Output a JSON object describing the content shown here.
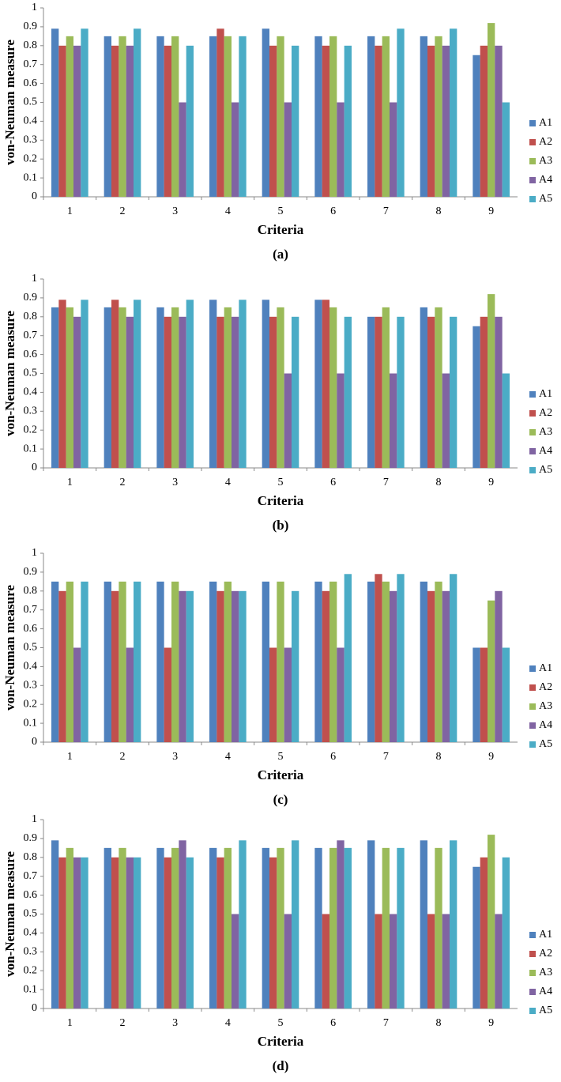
{
  "chart_data": [
    {
      "type": "bar",
      "caption": "(a)",
      "xlabel": "Criteria",
      "ylabel": "von-Neuman measure",
      "categories": [
        "1",
        "2",
        "3",
        "4",
        "5",
        "6",
        "7",
        "8",
        "9"
      ],
      "ylim": [
        0,
        1
      ],
      "yticks": [
        0,
        0.1,
        0.2,
        0.3,
        0.4,
        0.5,
        0.6,
        0.7,
        0.8,
        0.9,
        1
      ],
      "series": [
        {
          "name": "A1",
          "color": "#4f81bd",
          "values": [
            0.89,
            0.85,
            0.85,
            0.85,
            0.89,
            0.85,
            0.85,
            0.85,
            0.75
          ]
        },
        {
          "name": "A2",
          "color": "#c0504d",
          "values": [
            0.8,
            0.8,
            0.8,
            0.89,
            0.8,
            0.8,
            0.8,
            0.8,
            0.8
          ]
        },
        {
          "name": "A3",
          "color": "#9bbb59",
          "values": [
            0.85,
            0.85,
            0.85,
            0.85,
            0.85,
            0.85,
            0.85,
            0.85,
            0.92
          ]
        },
        {
          "name": "A4",
          "color": "#8064a2",
          "values": [
            0.8,
            0.8,
            0.5,
            0.5,
            0.5,
            0.5,
            0.5,
            0.8,
            0.8
          ]
        },
        {
          "name": "A5",
          "color": "#4bacc6",
          "values": [
            0.89,
            0.89,
            0.8,
            0.85,
            0.8,
            0.8,
            0.89,
            0.89,
            0.5
          ]
        }
      ]
    },
    {
      "type": "bar",
      "caption": "(b)",
      "xlabel": "Criteria",
      "ylabel": "von-Neuman measure",
      "categories": [
        "1",
        "2",
        "3",
        "4",
        "5",
        "6",
        "7",
        "8",
        "9"
      ],
      "ylim": [
        0,
        1
      ],
      "yticks": [
        0,
        0.1,
        0.2,
        0.3,
        0.4,
        0.5,
        0.6,
        0.7,
        0.8,
        0.9,
        1
      ],
      "series": [
        {
          "name": "A1",
          "color": "#4f81bd",
          "values": [
            0.85,
            0.85,
            0.85,
            0.89,
            0.89,
            0.89,
            0.8,
            0.85,
            0.75
          ]
        },
        {
          "name": "A2",
          "color": "#c0504d",
          "values": [
            0.89,
            0.89,
            0.8,
            0.8,
            0.8,
            0.89,
            0.8,
            0.8,
            0.8
          ]
        },
        {
          "name": "A3",
          "color": "#9bbb59",
          "values": [
            0.85,
            0.85,
            0.85,
            0.85,
            0.85,
            0.85,
            0.85,
            0.85,
            0.92
          ]
        },
        {
          "name": "A4",
          "color": "#8064a2",
          "values": [
            0.8,
            0.8,
            0.8,
            0.8,
            0.5,
            0.5,
            0.5,
            0.5,
            0.8
          ]
        },
        {
          "name": "A5",
          "color": "#4bacc6",
          "values": [
            0.89,
            0.89,
            0.89,
            0.89,
            0.8,
            0.8,
            0.8,
            0.8,
            0.5
          ]
        }
      ]
    },
    {
      "type": "bar",
      "caption": "(c)",
      "xlabel": "Criteria",
      "ylabel": "von-Neuman measure",
      "categories": [
        "1",
        "2",
        "3",
        "4",
        "5",
        "6",
        "7",
        "8",
        "9"
      ],
      "ylim": [
        0,
        1
      ],
      "yticks": [
        0,
        0.1,
        0.2,
        0.3,
        0.4,
        0.5,
        0.6,
        0.7,
        0.8,
        0.9,
        1
      ],
      "series": [
        {
          "name": "A1",
          "color": "#4f81bd",
          "values": [
            0.85,
            0.85,
            0.85,
            0.85,
            0.85,
            0.85,
            0.85,
            0.85,
            0.5
          ]
        },
        {
          "name": "A2",
          "color": "#c0504d",
          "values": [
            0.8,
            0.8,
            0.5,
            0.8,
            0.5,
            0.8,
            0.89,
            0.8,
            0.5
          ]
        },
        {
          "name": "A3",
          "color": "#9bbb59",
          "values": [
            0.85,
            0.85,
            0.85,
            0.85,
            0.85,
            0.85,
            0.85,
            0.85,
            0.75
          ]
        },
        {
          "name": "A4",
          "color": "#8064a2",
          "values": [
            0.5,
            0.5,
            0.8,
            0.8,
            0.5,
            0.5,
            0.8,
            0.8,
            0.8
          ]
        },
        {
          "name": "A5",
          "color": "#4bacc6",
          "values": [
            0.85,
            0.85,
            0.8,
            0.8,
            0.8,
            0.89,
            0.89,
            0.89,
            0.5
          ]
        }
      ]
    },
    {
      "type": "bar",
      "caption": "(d)",
      "xlabel": "Criteria",
      "ylabel": "von-Neuman measure",
      "categories": [
        "1",
        "2",
        "3",
        "4",
        "5",
        "6",
        "7",
        "8",
        "9"
      ],
      "ylim": [
        0,
        1
      ],
      "yticks": [
        0,
        0.1,
        0.2,
        0.3,
        0.4,
        0.5,
        0.6,
        0.7,
        0.8,
        0.9,
        1
      ],
      "series": [
        {
          "name": "A1",
          "color": "#4f81bd",
          "values": [
            0.89,
            0.85,
            0.85,
            0.85,
            0.85,
            0.85,
            0.89,
            0.89,
            0.75
          ]
        },
        {
          "name": "A2",
          "color": "#c0504d",
          "values": [
            0.8,
            0.8,
            0.8,
            0.8,
            0.8,
            0.5,
            0.5,
            0.5,
            0.8
          ]
        },
        {
          "name": "A3",
          "color": "#9bbb59",
          "values": [
            0.85,
            0.85,
            0.85,
            0.85,
            0.85,
            0.85,
            0.85,
            0.85,
            0.92
          ]
        },
        {
          "name": "A4",
          "color": "#8064a2",
          "values": [
            0.8,
            0.8,
            0.89,
            0.5,
            0.5,
            0.89,
            0.5,
            0.5,
            0.5
          ]
        },
        {
          "name": "A5",
          "color": "#4bacc6",
          "values": [
            0.8,
            0.8,
            0.8,
            0.89,
            0.89,
            0.85,
            0.85,
            0.89,
            0.8
          ]
        }
      ]
    }
  ]
}
